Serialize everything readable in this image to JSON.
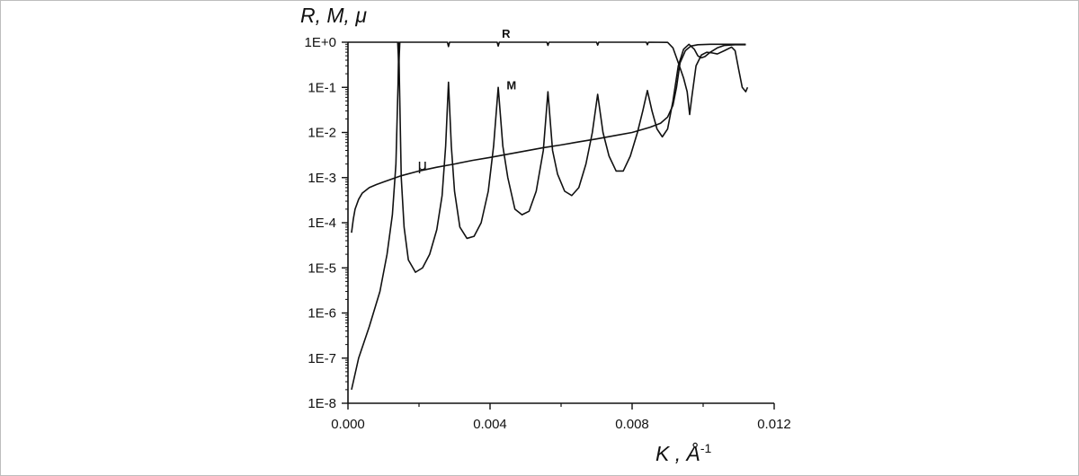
{
  "chart_data": {
    "type": "line",
    "title": "",
    "ylabel": "R, M, μ",
    "xlabel": "K , Å",
    "xlabel_superscript": "-1",
    "yscale": "log",
    "xlim": [
      0.0,
      0.012
    ],
    "ylim": [
      1e-08,
      1
    ],
    "x_ticks": [
      {
        "value": 0.0,
        "label": "0.000"
      },
      {
        "value": 0.004,
        "label": "0.004"
      },
      {
        "value": 0.008,
        "label": "0.008"
      },
      {
        "value": 0.012,
        "label": "0.012"
      }
    ],
    "y_ticks": [
      {
        "value": 1,
        "label": "1E+0"
      },
      {
        "value": 0.1,
        "label": "1E-1"
      },
      {
        "value": 0.01,
        "label": "1E-2"
      },
      {
        "value": 0.001,
        "label": "1E-3"
      },
      {
        "value": 0.0001,
        "label": "1E-4"
      },
      {
        "value": 1e-05,
        "label": "1E-5"
      },
      {
        "value": 1e-06,
        "label": "1E-6"
      },
      {
        "value": 1e-07,
        "label": "1E-7"
      },
      {
        "value": 1e-08,
        "label": "1E-8"
      }
    ],
    "grid": false,
    "series": [
      {
        "name": "R",
        "label_at": [
          0.0043,
          1.0
        ],
        "points": [
          [
            0.0,
            1.0
          ],
          [
            0.0014,
            1.0
          ],
          [
            0.00143,
            0.3
          ],
          [
            0.00146,
            1.0
          ],
          [
            0.0028,
            1.0
          ],
          [
            0.00283,
            0.8
          ],
          [
            0.00286,
            1.0
          ],
          [
            0.0042,
            1.0
          ],
          [
            0.00423,
            0.82
          ],
          [
            0.00426,
            1.0
          ],
          [
            0.0056,
            1.0
          ],
          [
            0.00563,
            0.85
          ],
          [
            0.00566,
            1.0
          ],
          [
            0.007,
            1.0
          ],
          [
            0.00703,
            0.86
          ],
          [
            0.00706,
            1.0
          ],
          [
            0.0084,
            1.0
          ],
          [
            0.00843,
            0.88
          ],
          [
            0.00846,
            1.0
          ],
          [
            0.009,
            0.99
          ],
          [
            0.00915,
            0.75
          ],
          [
            0.0093,
            0.35
          ],
          [
            0.00945,
            0.16
          ],
          [
            0.00955,
            0.08
          ],
          [
            0.00962,
            0.025
          ],
          [
            0.00968,
            0.06
          ],
          [
            0.0098,
            0.3
          ],
          [
            0.00995,
            0.52
          ],
          [
            0.0101,
            0.6
          ],
          [
            0.01025,
            0.58
          ],
          [
            0.0104,
            0.55
          ],
          [
            0.0106,
            0.65
          ],
          [
            0.0108,
            0.78
          ],
          [
            0.0109,
            0.65
          ],
          [
            0.011,
            0.25
          ],
          [
            0.0111,
            0.1
          ],
          [
            0.0112,
            0.08
          ],
          [
            0.01125,
            0.1
          ]
        ]
      },
      {
        "name": "M",
        "label_at": [
          0.0043,
          0.1
        ],
        "points": [
          [
            0.0001,
            2e-08
          ],
          [
            0.0003,
            1e-07
          ],
          [
            0.0006,
            5e-07
          ],
          [
            0.0009,
            3e-06
          ],
          [
            0.0011,
            2e-05
          ],
          [
            0.00125,
            0.00015
          ],
          [
            0.00135,
            0.002
          ],
          [
            0.00141,
            0.12
          ],
          [
            0.00143,
            1.0
          ],
          [
            0.00145,
            0.12
          ],
          [
            0.0015,
            0.001
          ],
          [
            0.00158,
            8e-05
          ],
          [
            0.0017,
            1.5e-05
          ],
          [
            0.0019,
            8e-06
          ],
          [
            0.0021,
            1e-05
          ],
          [
            0.0023,
            2e-05
          ],
          [
            0.0025,
            7e-05
          ],
          [
            0.00265,
            0.0004
          ],
          [
            0.00275,
            0.005
          ],
          [
            0.00283,
            0.13
          ],
          [
            0.00291,
            0.005
          ],
          [
            0.003,
            0.0005
          ],
          [
            0.00315,
            8e-05
          ],
          [
            0.00335,
            4.5e-05
          ],
          [
            0.00355,
            5e-05
          ],
          [
            0.00375,
            0.0001
          ],
          [
            0.00395,
            0.0005
          ],
          [
            0.0041,
            0.005
          ],
          [
            0.00423,
            0.1
          ],
          [
            0.00436,
            0.005
          ],
          [
            0.0045,
            0.001
          ],
          [
            0.0047,
            0.0002
          ],
          [
            0.0049,
            0.00015
          ],
          [
            0.0051,
            0.00018
          ],
          [
            0.0053,
            0.0005
          ],
          [
            0.0055,
            0.004
          ],
          [
            0.00563,
            0.08
          ],
          [
            0.00576,
            0.004
          ],
          [
            0.0059,
            0.0012
          ],
          [
            0.0061,
            0.0005
          ],
          [
            0.0063,
            0.0004
          ],
          [
            0.0065,
            0.0006
          ],
          [
            0.0067,
            0.002
          ],
          [
            0.00688,
            0.01
          ],
          [
            0.00703,
            0.07
          ],
          [
            0.00718,
            0.01
          ],
          [
            0.00735,
            0.003
          ],
          [
            0.00755,
            0.0014
          ],
          [
            0.00775,
            0.0014
          ],
          [
            0.00795,
            0.003
          ],
          [
            0.00815,
            0.01
          ],
          [
            0.0083,
            0.03
          ],
          [
            0.00843,
            0.085
          ],
          [
            0.00856,
            0.03
          ],
          [
            0.0087,
            0.012
          ],
          [
            0.00885,
            0.008
          ],
          [
            0.009,
            0.012
          ],
          [
            0.00915,
            0.05
          ],
          [
            0.0093,
            0.3
          ],
          [
            0.00945,
            0.7
          ],
          [
            0.0096,
            0.9
          ],
          [
            0.00975,
            0.7
          ],
          [
            0.00985,
            0.5
          ],
          [
            0.00995,
            0.45
          ],
          [
            0.01005,
            0.48
          ],
          [
            0.0102,
            0.6
          ],
          [
            0.0104,
            0.75
          ],
          [
            0.0106,
            0.85
          ],
          [
            0.0109,
            0.88
          ],
          [
            0.0112,
            0.88
          ]
        ]
      },
      {
        "name": "μ",
        "label_at": [
          0.0023,
          0.0011
        ],
        "points": [
          [
            0.0001,
            6e-05
          ],
          [
            0.00015,
            0.00012
          ],
          [
            0.0002,
            0.0002
          ],
          [
            0.0003,
            0.00033
          ],
          [
            0.0004,
            0.00045
          ],
          [
            0.0006,
            0.0006
          ],
          [
            0.0008,
            0.0007
          ],
          [
            0.001,
            0.0008
          ],
          [
            0.0015,
            0.0011
          ],
          [
            0.002,
            0.0014
          ],
          [
            0.0025,
            0.0017
          ],
          [
            0.003,
            0.002
          ],
          [
            0.0035,
            0.0024
          ],
          [
            0.004,
            0.0028
          ],
          [
            0.0045,
            0.0033
          ],
          [
            0.005,
            0.0039
          ],
          [
            0.0055,
            0.0046
          ],
          [
            0.006,
            0.0053
          ],
          [
            0.0065,
            0.0062
          ],
          [
            0.007,
            0.0072
          ],
          [
            0.0075,
            0.0085
          ],
          [
            0.008,
            0.01
          ],
          [
            0.0085,
            0.013
          ],
          [
            0.0088,
            0.016
          ],
          [
            0.009,
            0.022
          ],
          [
            0.00915,
            0.04
          ],
          [
            0.00925,
            0.1
          ],
          [
            0.00935,
            0.35
          ],
          [
            0.0095,
            0.65
          ],
          [
            0.00965,
            0.82
          ],
          [
            0.00985,
            0.88
          ],
          [
            0.0102,
            0.9
          ],
          [
            0.0108,
            0.9
          ],
          [
            0.0112,
            0.9
          ]
        ]
      }
    ]
  }
}
